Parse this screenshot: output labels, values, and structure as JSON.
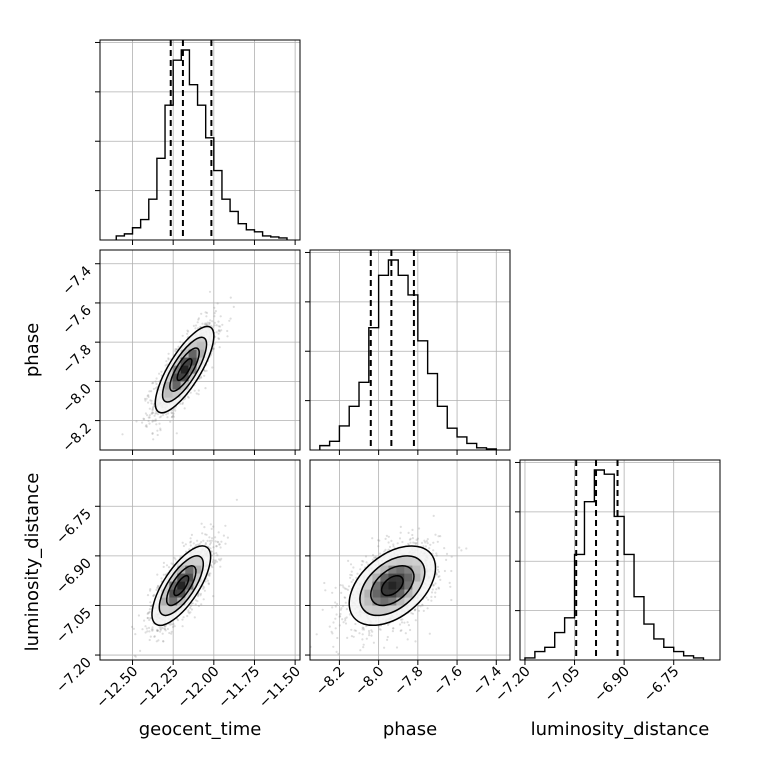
{
  "chart_data": {
    "type": "corner",
    "parameters": [
      "geocent_time",
      "phase",
      "luminosity_distance"
    ],
    "ranges": {
      "geocent_time": [
        -12.7,
        -11.47
      ],
      "phase": [
        -8.35,
        -7.33
      ],
      "luminosity_distance": [
        -7.215,
        -6.61
      ]
    },
    "ticks": {
      "geocent_time": [
        -12.5,
        -12.25,
        -12.0,
        -11.75,
        -11.5
      ],
      "phase": [
        -8.2,
        -8.0,
        -7.8,
        -7.6,
        -7.4
      ],
      "luminosity_distance": [
        -7.2,
        -7.05,
        -6.9,
        -6.75
      ]
    },
    "tick_labels": {
      "geocent_time": [
        "−12.50",
        "−12.25",
        "−12.00",
        "−11.75",
        "−11.50"
      ],
      "phase": [
        "−8.2",
        "−8.0",
        "−7.8",
        "−7.6",
        "−7.4"
      ],
      "luminosity_distance": [
        "−7.20",
        "−7.05",
        "−6.90",
        "−6.75"
      ]
    },
    "quantiles": {
      "geocent_time": [
        -12.265,
        -12.19,
        -12.015
      ],
      "phase": [
        -8.04,
        -7.935,
        -7.82
      ],
      "luminosity_distance": [
        -7.045,
        -6.985,
        -6.92
      ]
    },
    "histograms": {
      "geocent_time": {
        "edges": [
          -12.6,
          -12.55,
          -12.5,
          -12.45,
          -12.4,
          -12.35,
          -12.3,
          -12.25,
          -12.2,
          -12.15,
          -12.1,
          -12.05,
          -12.0,
          -11.95,
          -11.9,
          -11.85,
          -11.8,
          -11.75,
          -11.7,
          -11.65,
          -11.6,
          -11.55
        ],
        "counts": [
          0.02,
          0.03,
          0.06,
          0.1,
          0.2,
          0.4,
          0.66,
          0.88,
          0.93,
          0.76,
          0.66,
          0.5,
          0.34,
          0.2,
          0.14,
          0.08,
          0.05,
          0.04,
          0.02,
          0.015,
          0.01
        ]
      },
      "phase": {
        "edges": [
          -8.3,
          -8.25,
          -8.2,
          -8.15,
          -8.1,
          -8.05,
          -8.0,
          -7.95,
          -7.9,
          -7.85,
          -7.8,
          -7.75,
          -7.7,
          -7.65,
          -7.6,
          -7.55,
          -7.5,
          -7.45,
          -7.4
        ],
        "counts": [
          0.02,
          0.04,
          0.11,
          0.2,
          0.31,
          0.56,
          0.8,
          0.87,
          0.8,
          0.71,
          0.5,
          0.35,
          0.2,
          0.1,
          0.06,
          0.03,
          0.01,
          0.005
        ]
      },
      "luminosity_distance": {
        "edges": [
          -7.2,
          -7.17,
          -7.14,
          -7.11,
          -7.08,
          -7.05,
          -7.02,
          -6.99,
          -6.96,
          -6.93,
          -6.9,
          -6.87,
          -6.84,
          -6.81,
          -6.78,
          -6.75,
          -6.72,
          -6.69,
          -6.66
        ],
        "counts": [
          0.01,
          0.04,
          0.06,
          0.13,
          0.2,
          0.5,
          0.75,
          0.9,
          0.88,
          0.68,
          0.5,
          0.3,
          0.17,
          0.1,
          0.06,
          0.04,
          0.02,
          0.01
        ]
      }
    },
    "scatter": [
      {
        "x": "geocent_time",
        "y": "phase",
        "center": [
          -12.18,
          -7.94
        ],
        "sigma": [
          0.09,
          0.11
        ],
        "rho": 0.78,
        "contour_levels_sigma": [
          0.5,
          1.0,
          1.5,
          2.0
        ]
      },
      {
        "x": "geocent_time",
        "y": "luminosity_distance",
        "center": [
          -12.2,
          -6.99
        ],
        "sigma": [
          0.09,
          0.06
        ],
        "rho": 0.72,
        "contour_levels_sigma": [
          0.5,
          1.0,
          1.5,
          2.0
        ]
      },
      {
        "x": "phase",
        "y": "luminosity_distance",
        "center": [
          -7.93,
          -6.99
        ],
        "sigma": [
          0.11,
          0.06
        ],
        "rho": 0.45,
        "contour_levels_sigma": [
          0.5,
          1.0,
          1.5,
          2.0
        ]
      }
    ],
    "grid": true
  }
}
